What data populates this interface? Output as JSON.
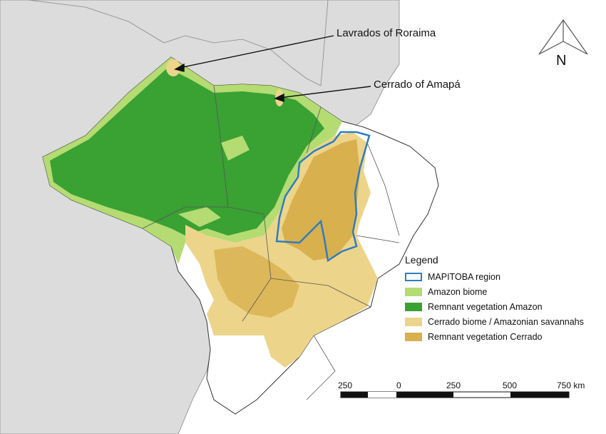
{
  "callouts": {
    "roraima": "Lavrados of Roraima",
    "amapa": "Cerrado of Amapá"
  },
  "north_arrow": {
    "label": "N",
    "icon": "north-arrow-icon"
  },
  "legend": {
    "title": "Legend",
    "items": [
      {
        "label": "MAPITOBA region",
        "color": "#2f7cc0",
        "style": "outline"
      },
      {
        "label": "Amazon biome",
        "color": "#b5db73",
        "style": "fill"
      },
      {
        "label": "Remnant vegetation Amazon",
        "color": "#3aa133",
        "style": "fill"
      },
      {
        "label": "Cerrado biome / Amazonian savannahs",
        "color": "#ecd58a",
        "style": "fill"
      },
      {
        "label": "Remnant vegetation Cerrado",
        "color": "#d9b04e",
        "style": "fill"
      }
    ]
  },
  "scale_bar": {
    "labels": [
      "250",
      "0",
      "250",
      "500",
      "750 km"
    ]
  },
  "colors": {
    "land_background": "#dcdcdc",
    "ocean": "#ffffff",
    "border": "#555555",
    "mapitoba_outline": "#2f7cc0",
    "amazon_biome": "#b5db73",
    "amazon_remnant": "#3aa133",
    "cerrado_biome": "#ecd58a",
    "cerrado_remnant": "#d9b04e"
  }
}
